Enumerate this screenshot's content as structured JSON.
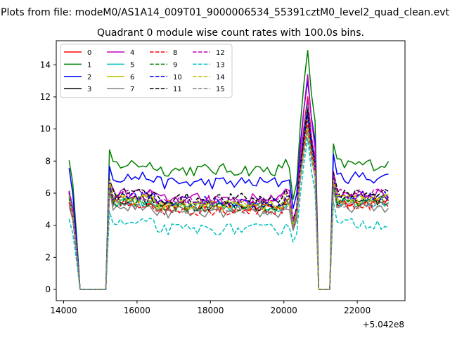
{
  "figure": {
    "suptitle": "Plots from file: modeM0/AS1A14_009T01_9000006534_55391cztM0_level2_quad_clean.evt",
    "offset_label": "+5.042e8"
  },
  "chart_data": {
    "type": "line",
    "title": "Quadrant 0 module wise count rates with 100.0s bins.",
    "xlabel": "",
    "ylabel": "",
    "xlim": [
      13800,
      23300
    ],
    "ylim": [
      -0.7,
      15.5
    ],
    "x_offset": 504200000,
    "x_ticks": [
      14000,
      16000,
      18000,
      20000,
      22000
    ],
    "x_tick_labels": [
      "14000",
      "16000",
      "18000",
      "20000",
      "22000"
    ],
    "y_ticks": [
      0,
      2,
      4,
      6,
      8,
      10,
      12,
      14
    ],
    "y_tick_labels": [
      "0",
      "2",
      "4",
      "6",
      "8",
      "10",
      "12",
      "14"
    ],
    "grid": false,
    "legend_position": "upper left",
    "legend_columns": 4,
    "x_start": 14150,
    "x_step": 100,
    "x_end": 22850,
    "gap_intervals": [
      [
        14400,
        15150
      ],
      [
        20950,
        21300
      ]
    ],
    "series": [
      {
        "name": "0",
        "color": "#ff0000",
        "dash": "solid",
        "baseline": 5.5,
        "peak": 12.0,
        "base_amp": 0.35
      },
      {
        "name": "1",
        "color": "#008000",
        "dash": "solid",
        "baseline": 7.8,
        "peak": 14.9,
        "base_amp": 0.4
      },
      {
        "name": "2",
        "color": "#0000ff",
        "dash": "solid",
        "baseline": 7.0,
        "peak": 13.0,
        "base_amp": 0.4
      },
      {
        "name": "3",
        "color": "#000000",
        "dash": "solid",
        "baseline": 5.6,
        "peak": 11.5,
        "base_amp": 0.35
      },
      {
        "name": "4",
        "color": "#bf00bf",
        "dash": "solid",
        "baseline": 6.0,
        "peak": 13.4,
        "base_amp": 0.35
      },
      {
        "name": "5",
        "color": "#00bfbf",
        "dash": "solid",
        "baseline": 5.5,
        "peak": 11.6,
        "base_amp": 0.35
      },
      {
        "name": "6",
        "color": "#bfbf00",
        "dash": "solid",
        "baseline": 5.6,
        "peak": 10.8,
        "base_amp": 0.35
      },
      {
        "name": "7",
        "color": "#808080",
        "dash": "solid",
        "baseline": 5.1,
        "peak": 10.2,
        "base_amp": 0.3
      },
      {
        "name": "8",
        "color": "#ff0000",
        "dash": "dashed",
        "baseline": 5.3,
        "peak": 10.5,
        "base_amp": 0.35
      },
      {
        "name": "9",
        "color": "#008000",
        "dash": "dashed",
        "baseline": 5.5,
        "peak": 11.0,
        "base_amp": 0.35
      },
      {
        "name": "10",
        "color": "#0000ff",
        "dash": "dashed",
        "baseline": 5.8,
        "peak": 10.9,
        "base_amp": 0.35
      },
      {
        "name": "11",
        "color": "#000000",
        "dash": "dashed",
        "baseline": 6.0,
        "peak": 11.2,
        "base_amp": 0.35
      },
      {
        "name": "12",
        "color": "#bf00bf",
        "dash": "dashed",
        "baseline": 5.9,
        "peak": 11.8,
        "base_amp": 0.35
      },
      {
        "name": "13",
        "color": "#00bfbf",
        "dash": "dashed",
        "baseline": 4.1,
        "peak": 9.4,
        "base_amp": 0.35
      },
      {
        "name": "14",
        "color": "#bfbf00",
        "dash": "dashed",
        "baseline": 5.6,
        "peak": 10.0,
        "base_amp": 0.35
      },
      {
        "name": "15",
        "color": "#808080",
        "dash": "dashed",
        "baseline": 5.3,
        "peak": 9.8,
        "base_amp": 0.3
      }
    ]
  }
}
